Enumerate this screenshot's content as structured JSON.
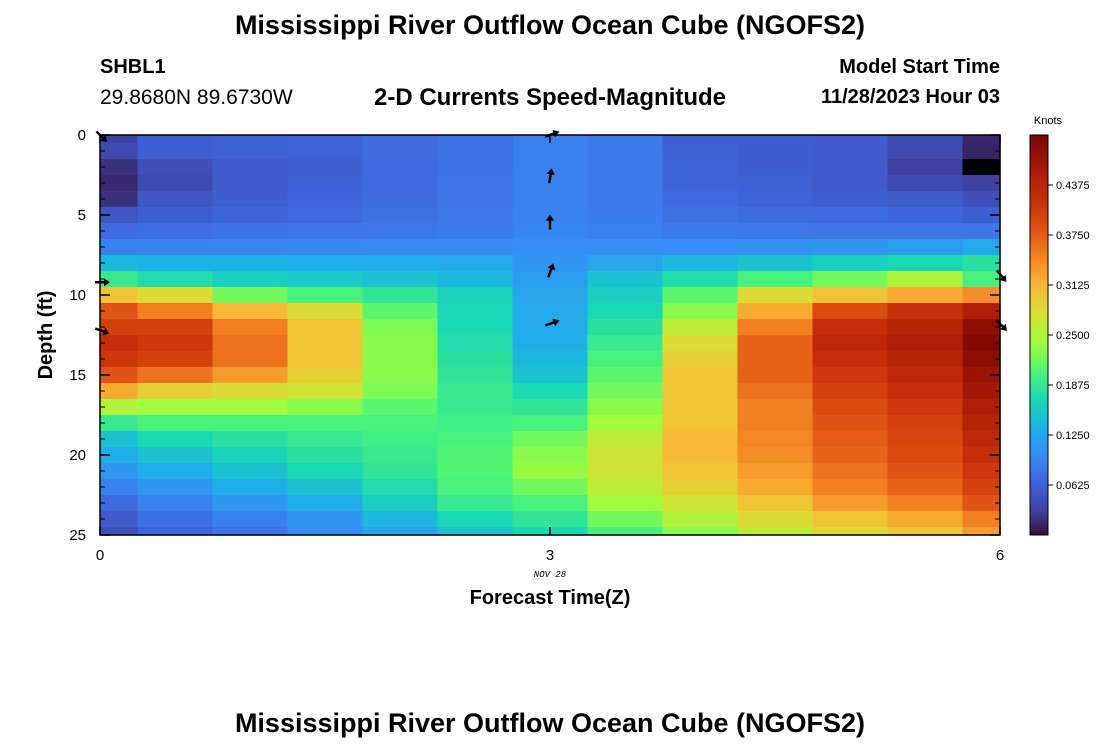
{
  "header": {
    "title": "Mississippi River Outflow Ocean Cube (NGOFS2)",
    "station": "SHBL1",
    "coords": "29.8680N  89.6730W",
    "subtitle": "2-D Currents Speed-Magnitude",
    "start_label": "Model Start Time",
    "start_value": "11/28/2023 Hour 03"
  },
  "footer": {
    "title": "Mississippi River Outflow Ocean Cube (NGOFS2)"
  },
  "chart_data": {
    "type": "heatmap",
    "title": "2-D Currents Speed-Magnitude",
    "xlabel": "Forecast Time(Z)",
    "ylabel": "Depth (ft)",
    "x_date_label": "NOV 28",
    "xlim": [
      0,
      6
    ],
    "ylim": [
      25,
      0
    ],
    "x_ticks": [
      0,
      3,
      6
    ],
    "y_ticks": [
      0,
      5,
      10,
      15,
      20,
      25
    ],
    "colorbar": {
      "label": "Knots",
      "range": [
        0.0,
        0.5
      ],
      "ticks": [
        "0.0625",
        "0.1250",
        "0.1875",
        "0.2500",
        "0.3125",
        "0.3750",
        "0.4375"
      ]
    },
    "x_centers": [
      0,
      0.5,
      1,
      1.5,
      2,
      2.5,
      3,
      3.5,
      4,
      4.5,
      5,
      5.5,
      6
    ],
    "y_centers": [
      0,
      1,
      2,
      3,
      4,
      5,
      6,
      7,
      8,
      9,
      10,
      11,
      12,
      13,
      14,
      15,
      16,
      17,
      18,
      19,
      20,
      21,
      22,
      23,
      24,
      25
    ],
    "speed": [
      [
        0.03,
        0.06,
        0.062,
        0.065,
        0.072,
        0.078,
        0.09,
        0.085,
        0.06,
        0.06,
        0.058,
        0.04,
        0.015
      ],
      [
        0.04,
        0.06,
        0.062,
        0.065,
        0.072,
        0.078,
        0.09,
        0.085,
        0.062,
        0.058,
        0.055,
        0.04,
        0.012
      ],
      [
        0.02,
        0.045,
        0.055,
        0.06,
        0.07,
        0.078,
        0.09,
        0.085,
        0.065,
        0.058,
        0.055,
        0.03,
        0.0
      ],
      [
        0.015,
        0.04,
        0.055,
        0.062,
        0.07,
        0.08,
        0.09,
        0.085,
        0.065,
        0.062,
        0.055,
        0.04,
        0.03
      ],
      [
        0.02,
        0.05,
        0.058,
        0.066,
        0.072,
        0.08,
        0.09,
        0.085,
        0.07,
        0.065,
        0.06,
        0.055,
        0.045
      ],
      [
        0.05,
        0.06,
        0.065,
        0.07,
        0.076,
        0.082,
        0.092,
        0.088,
        0.076,
        0.072,
        0.07,
        0.066,
        0.06
      ],
      [
        0.07,
        0.074,
        0.078,
        0.08,
        0.082,
        0.085,
        0.095,
        0.09,
        0.085,
        0.082,
        0.08,
        0.08,
        0.08
      ],
      [
        0.09,
        0.092,
        0.094,
        0.096,
        0.097,
        0.098,
        0.1,
        0.1,
        0.1,
        0.105,
        0.11,
        0.115,
        0.125
      ],
      [
        0.14,
        0.135,
        0.135,
        0.13,
        0.128,
        0.125,
        0.11,
        0.12,
        0.14,
        0.15,
        0.16,
        0.17,
        0.18
      ],
      [
        0.19,
        0.175,
        0.16,
        0.155,
        0.15,
        0.14,
        0.115,
        0.15,
        0.175,
        0.2,
        0.22,
        0.25,
        0.2
      ],
      [
        0.3,
        0.28,
        0.22,
        0.2,
        0.185,
        0.165,
        0.12,
        0.16,
        0.21,
        0.28,
        0.3,
        0.32,
        0.34
      ],
      [
        0.38,
        0.35,
        0.31,
        0.28,
        0.21,
        0.17,
        0.125,
        0.17,
        0.23,
        0.32,
        0.39,
        0.42,
        0.45
      ],
      [
        0.4,
        0.4,
        0.35,
        0.3,
        0.225,
        0.17,
        0.125,
        0.18,
        0.26,
        0.35,
        0.42,
        0.44,
        0.48
      ],
      [
        0.42,
        0.41,
        0.36,
        0.3,
        0.23,
        0.175,
        0.13,
        0.19,
        0.28,
        0.37,
        0.43,
        0.45,
        0.49
      ],
      [
        0.41,
        0.4,
        0.36,
        0.3,
        0.23,
        0.18,
        0.14,
        0.2,
        0.29,
        0.37,
        0.42,
        0.44,
        0.48
      ],
      [
        0.38,
        0.36,
        0.33,
        0.29,
        0.23,
        0.185,
        0.15,
        0.21,
        0.3,
        0.37,
        0.41,
        0.43,
        0.47
      ],
      [
        0.32,
        0.29,
        0.28,
        0.27,
        0.225,
        0.19,
        0.17,
        0.22,
        0.3,
        0.36,
        0.4,
        0.42,
        0.46
      ],
      [
        0.25,
        0.24,
        0.24,
        0.23,
        0.21,
        0.19,
        0.185,
        0.23,
        0.3,
        0.35,
        0.39,
        0.41,
        0.45
      ],
      [
        0.19,
        0.2,
        0.2,
        0.2,
        0.2,
        0.195,
        0.2,
        0.24,
        0.3,
        0.35,
        0.38,
        0.4,
        0.44
      ],
      [
        0.15,
        0.17,
        0.18,
        0.19,
        0.195,
        0.2,
        0.22,
        0.26,
        0.31,
        0.345,
        0.375,
        0.395,
        0.43
      ],
      [
        0.13,
        0.15,
        0.165,
        0.18,
        0.19,
        0.205,
        0.23,
        0.27,
        0.31,
        0.34,
        0.37,
        0.39,
        0.42
      ],
      [
        0.11,
        0.13,
        0.15,
        0.17,
        0.185,
        0.205,
        0.235,
        0.27,
        0.3,
        0.33,
        0.36,
        0.38,
        0.41
      ],
      [
        0.09,
        0.11,
        0.13,
        0.15,
        0.175,
        0.2,
        0.22,
        0.26,
        0.29,
        0.32,
        0.35,
        0.37,
        0.4
      ],
      [
        0.07,
        0.09,
        0.11,
        0.13,
        0.16,
        0.19,
        0.2,
        0.24,
        0.27,
        0.3,
        0.33,
        0.35,
        0.38
      ],
      [
        0.055,
        0.075,
        0.09,
        0.11,
        0.14,
        0.17,
        0.185,
        0.22,
        0.25,
        0.28,
        0.3,
        0.32,
        0.35
      ],
      [
        0.045,
        0.065,
        0.08,
        0.1,
        0.12,
        0.15,
        0.17,
        0.2,
        0.23,
        0.26,
        0.28,
        0.3,
        0.33
      ]
    ],
    "vectors": [
      {
        "t": 0,
        "depth": 0,
        "angle": 45
      },
      {
        "t": 3,
        "depth": 0,
        "angle": -20
      },
      {
        "t": 3,
        "depth": 2.7,
        "angle": -80
      },
      {
        "t": 3,
        "depth": 5.6,
        "angle": -90
      },
      {
        "t": 3,
        "depth": 8.6,
        "angle": -70
      },
      {
        "t": 3,
        "depth": 11.8,
        "angle": -20
      },
      {
        "t": 0,
        "depth": 9.2,
        "angle": 0
      },
      {
        "t": 0,
        "depth": 12.2,
        "angle": 20
      },
      {
        "t": 6,
        "depth": 8.7,
        "angle": 50
      },
      {
        "t": 6,
        "depth": 11.8,
        "angle": 45
      }
    ]
  }
}
